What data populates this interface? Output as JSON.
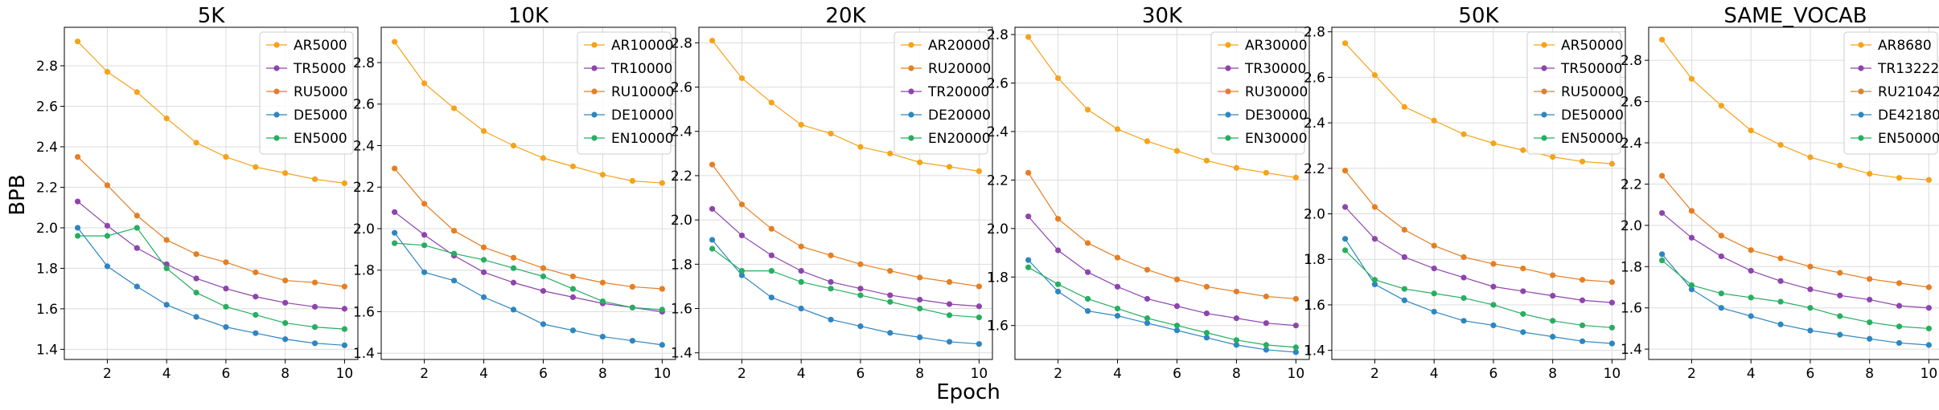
{
  "figure": {
    "xlabel": "Epoch",
    "ylabel": "BPB"
  },
  "chart_data": [
    {
      "type": "line",
      "title": "5K",
      "x": [
        1,
        2,
        3,
        4,
        5,
        6,
        7,
        8,
        9,
        10
      ],
      "xticks": [
        2,
        4,
        6,
        8,
        10
      ],
      "xlim": [
        0.55,
        10.45
      ],
      "ylim": [
        1.35,
        2.99
      ],
      "yticks": [
        1.4,
        1.6,
        1.8,
        2.0,
        2.2,
        2.4,
        2.6,
        2.8
      ],
      "ytick_labels": [
        "1.4",
        "1.6",
        "1.8",
        "2.0",
        "2.2",
        "2.4",
        "2.6",
        "2.8"
      ],
      "grid": true,
      "legend_position": "top-right",
      "series": [
        {
          "name": "AR5000",
          "color": "#f5a31a",
          "values": [
            2.92,
            2.77,
            2.67,
            2.54,
            2.42,
            2.35,
            2.3,
            2.27,
            2.24,
            2.22
          ]
        },
        {
          "name": "TR5000",
          "color": "#8e44ad",
          "values": [
            2.13,
            2.01,
            1.9,
            1.82,
            1.75,
            1.7,
            1.66,
            1.63,
            1.61,
            1.6
          ]
        },
        {
          "name": "RU5000",
          "color": "#e67e22",
          "values": [
            2.35,
            2.21,
            2.06,
            1.94,
            1.87,
            1.83,
            1.78,
            1.74,
            1.73,
            1.71
          ]
        },
        {
          "name": "DE5000",
          "color": "#2e86c1",
          "values": [
            2.0,
            1.81,
            1.71,
            1.62,
            1.56,
            1.51,
            1.48,
            1.45,
            1.43,
            1.42
          ]
        },
        {
          "name": "EN5000",
          "color": "#27ae60",
          "values": [
            1.96,
            1.96,
            2.0,
            1.8,
            1.68,
            1.61,
            1.57,
            1.53,
            1.51,
            1.5
          ]
        }
      ]
    },
    {
      "type": "line",
      "title": "10K",
      "x": [
        1,
        2,
        3,
        4,
        5,
        6,
        7,
        8,
        9,
        10
      ],
      "xticks": [
        2,
        4,
        6,
        8,
        10
      ],
      "xlim": [
        0.55,
        10.45
      ],
      "ylim": [
        1.37,
        2.97
      ],
      "yticks": [
        1.4,
        1.6,
        1.8,
        2.0,
        2.2,
        2.4,
        2.6,
        2.8
      ],
      "ytick_labels": [
        "1.4",
        "1.6",
        "1.8",
        "2.0",
        "2.2",
        "2.4",
        "2.6",
        "2.8"
      ],
      "grid": true,
      "legend_position": "top-right",
      "series": [
        {
          "name": "AR10000",
          "color": "#f5a31a",
          "values": [
            2.9,
            2.7,
            2.58,
            2.47,
            2.4,
            2.34,
            2.3,
            2.26,
            2.23,
            2.22
          ]
        },
        {
          "name": "TR10000",
          "color": "#8e44ad",
          "values": [
            2.08,
            1.97,
            1.87,
            1.79,
            1.74,
            1.7,
            1.67,
            1.64,
            1.62,
            1.6
          ]
        },
        {
          "name": "RU10000",
          "color": "#e67e22",
          "values": [
            2.29,
            2.12,
            1.99,
            1.91,
            1.86,
            1.81,
            1.77,
            1.74,
            1.72,
            1.71
          ]
        },
        {
          "name": "DE10000",
          "color": "#2e86c1",
          "values": [
            1.98,
            1.79,
            1.75,
            1.67,
            1.61,
            1.54,
            1.51,
            1.48,
            1.46,
            1.44
          ]
        },
        {
          "name": "EN10000",
          "color": "#27ae60",
          "values": [
            1.93,
            1.92,
            1.88,
            1.85,
            1.81,
            1.77,
            1.71,
            1.65,
            1.62,
            1.61
          ]
        }
      ]
    },
    {
      "type": "line",
      "title": "20K",
      "x": [
        1,
        2,
        3,
        4,
        5,
        6,
        7,
        8,
        9,
        10
      ],
      "xticks": [
        2,
        4,
        6,
        8,
        10
      ],
      "xlim": [
        0.55,
        10.45
      ],
      "ylim": [
        1.37,
        2.87
      ],
      "yticks": [
        1.4,
        1.6,
        1.8,
        2.0,
        2.2,
        2.4,
        2.6,
        2.8
      ],
      "ytick_labels": [
        "1.4",
        "1.6",
        "1.8",
        "2.0",
        "2.2",
        "2.4",
        "2.6",
        "2.8"
      ],
      "grid": true,
      "legend_position": "top-right",
      "series": [
        {
          "name": "AR20000",
          "color": "#f5a31a",
          "values": [
            2.81,
            2.64,
            2.53,
            2.43,
            2.39,
            2.33,
            2.3,
            2.26,
            2.24,
            2.22
          ]
        },
        {
          "name": "RU20000",
          "color": "#e67e22",
          "values": [
            2.25,
            2.07,
            1.96,
            1.88,
            1.84,
            1.8,
            1.77,
            1.74,
            1.72,
            1.7
          ]
        },
        {
          "name": "TR20000",
          "color": "#8e44ad",
          "values": [
            2.05,
            1.93,
            1.84,
            1.77,
            1.72,
            1.69,
            1.66,
            1.64,
            1.62,
            1.61
          ]
        },
        {
          "name": "DE20000",
          "color": "#2e86c1",
          "values": [
            1.91,
            1.75,
            1.65,
            1.6,
            1.55,
            1.52,
            1.49,
            1.47,
            1.45,
            1.44
          ]
        },
        {
          "name": "EN20000",
          "color": "#27ae60",
          "values": [
            1.87,
            1.77,
            1.77,
            1.72,
            1.69,
            1.66,
            1.63,
            1.6,
            1.57,
            1.56
          ]
        }
      ]
    },
    {
      "type": "line",
      "title": "30K",
      "x": [
        1,
        2,
        3,
        4,
        5,
        6,
        7,
        8,
        9,
        10
      ],
      "xticks": [
        2,
        4,
        6,
        8,
        10
      ],
      "xlim": [
        0.55,
        10.45
      ],
      "ylim": [
        1.46,
        2.83
      ],
      "yticks": [
        1.6,
        1.8,
        2.0,
        2.2,
        2.4,
        2.6,
        2.8
      ],
      "ytick_labels": [
        "1.6",
        "1.8",
        "2.0",
        "2.2",
        "2.4",
        "2.6",
        "2.8"
      ],
      "grid": true,
      "legend_position": "top-right",
      "series": [
        {
          "name": "AR30000",
          "color": "#f5a31a",
          "values": [
            2.79,
            2.62,
            2.49,
            2.41,
            2.36,
            2.32,
            2.28,
            2.25,
            2.23,
            2.21
          ]
        },
        {
          "name": "TR30000",
          "color": "#8e44ad",
          "values": [
            2.05,
            1.91,
            1.82,
            1.76,
            1.71,
            1.68,
            1.65,
            1.63,
            1.61,
            1.6
          ]
        },
        {
          "name": "RU30000",
          "color": "#e67e22",
          "values": [
            2.23,
            2.04,
            1.94,
            1.88,
            1.83,
            1.79,
            1.76,
            1.74,
            1.72,
            1.71
          ]
        },
        {
          "name": "DE30000",
          "color": "#2e86c1",
          "values": [
            1.87,
            1.74,
            1.66,
            1.64,
            1.61,
            1.58,
            1.55,
            1.52,
            1.5,
            1.49
          ]
        },
        {
          "name": "EN30000",
          "color": "#27ae60",
          "values": [
            1.84,
            1.77,
            1.71,
            1.67,
            1.63,
            1.6,
            1.57,
            1.54,
            1.52,
            1.51
          ]
        }
      ]
    },
    {
      "type": "line",
      "title": "50K",
      "x": [
        1,
        2,
        3,
        4,
        5,
        6,
        7,
        8,
        9,
        10
      ],
      "xticks": [
        2,
        4,
        6,
        8,
        10
      ],
      "xlim": [
        0.55,
        10.45
      ],
      "ylim": [
        1.36,
        2.82
      ],
      "yticks": [
        1.4,
        1.6,
        1.8,
        2.0,
        2.2,
        2.4,
        2.6,
        2.8
      ],
      "ytick_labels": [
        "1.4",
        "1.6",
        "1.8",
        "2.0",
        "2.2",
        "2.4",
        "2.6",
        "2.8"
      ],
      "grid": true,
      "legend_position": "top-right",
      "series": [
        {
          "name": "AR50000",
          "color": "#f5a31a",
          "values": [
            2.75,
            2.61,
            2.47,
            2.41,
            2.35,
            2.31,
            2.28,
            2.25,
            2.23,
            2.22
          ]
        },
        {
          "name": "TR50000",
          "color": "#8e44ad",
          "values": [
            2.03,
            1.89,
            1.81,
            1.76,
            1.72,
            1.68,
            1.66,
            1.64,
            1.62,
            1.61
          ]
        },
        {
          "name": "RU50000",
          "color": "#e67e22",
          "values": [
            2.19,
            2.03,
            1.93,
            1.86,
            1.81,
            1.78,
            1.76,
            1.73,
            1.71,
            1.7
          ]
        },
        {
          "name": "DE50000",
          "color": "#2e86c1",
          "values": [
            1.89,
            1.69,
            1.62,
            1.57,
            1.53,
            1.51,
            1.48,
            1.46,
            1.44,
            1.43
          ]
        },
        {
          "name": "EN50000",
          "color": "#27ae60",
          "values": [
            1.84,
            1.71,
            1.67,
            1.65,
            1.63,
            1.6,
            1.56,
            1.53,
            1.51,
            1.5
          ]
        }
      ]
    },
    {
      "type": "line",
      "title": "SAME_VOCAB",
      "x": [
        1,
        2,
        3,
        4,
        5,
        6,
        7,
        8,
        9,
        10
      ],
      "xticks": [
        2,
        4,
        6,
        8,
        10
      ],
      "xlim": [
        0.55,
        10.45
      ],
      "ylim": [
        1.35,
        2.96
      ],
      "yticks": [
        1.4,
        1.6,
        1.8,
        2.0,
        2.2,
        2.4,
        2.6,
        2.8
      ],
      "ytick_labels": [
        "1.4",
        "1.6",
        "1.8",
        "2.0",
        "2.2",
        "2.4",
        "2.6",
        "2.8"
      ],
      "grid": true,
      "legend_position": "top-right",
      "series": [
        {
          "name": "AR8680",
          "color": "#f5a31a",
          "values": [
            2.9,
            2.71,
            2.58,
            2.46,
            2.39,
            2.33,
            2.29,
            2.25,
            2.23,
            2.22
          ]
        },
        {
          "name": "TR13222",
          "color": "#8e44ad",
          "values": [
            2.06,
            1.94,
            1.85,
            1.78,
            1.73,
            1.69,
            1.66,
            1.64,
            1.61,
            1.6
          ]
        },
        {
          "name": "RU21042",
          "color": "#e67e22",
          "values": [
            2.24,
            2.07,
            1.95,
            1.88,
            1.84,
            1.8,
            1.77,
            1.74,
            1.72,
            1.7
          ]
        },
        {
          "name": "DE42180",
          "color": "#2e86c1",
          "values": [
            1.86,
            1.69,
            1.6,
            1.56,
            1.52,
            1.49,
            1.47,
            1.45,
            1.43,
            1.42
          ]
        },
        {
          "name": "EN50000",
          "color": "#27ae60",
          "values": [
            1.83,
            1.71,
            1.67,
            1.65,
            1.63,
            1.6,
            1.56,
            1.53,
            1.51,
            1.5
          ]
        }
      ]
    }
  ]
}
